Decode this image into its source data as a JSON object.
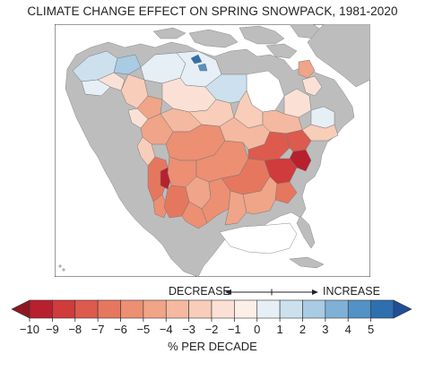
{
  "title": "CLIMATE CHANGE EFFECT ON SPRING SNOWPACK, 1981-2020",
  "direction": {
    "decrease": "DECREASE",
    "increase": "INCREASE"
  },
  "legend": {
    "unit": "% PER DECADE",
    "ticks": [
      "−10",
      "−9",
      "−8",
      "−7",
      "−6",
      "−5",
      "−4",
      "−3",
      "−2",
      "−1",
      "0",
      "1",
      "2",
      "3",
      "4",
      "5"
    ],
    "colors": [
      "#b8202e",
      "#d03b3c",
      "#dd5a4e",
      "#e6775f",
      "#ec8f73",
      "#f0a488",
      "#f4b9a0",
      "#f8cdb9",
      "#fbe1d5",
      "#fcefe8",
      "#e6eff6",
      "#cde0ee",
      "#a9cbe3",
      "#7fb0d6",
      "#5292c4",
      "#2e6fb0"
    ],
    "min_arrow_color": "#8e1620",
    "max_arrow_color": "#1f4e96"
  },
  "colors": {
    "ocean": "#ffffff",
    "land_no_data": "#bdbdbd",
    "border": "#555555"
  }
}
